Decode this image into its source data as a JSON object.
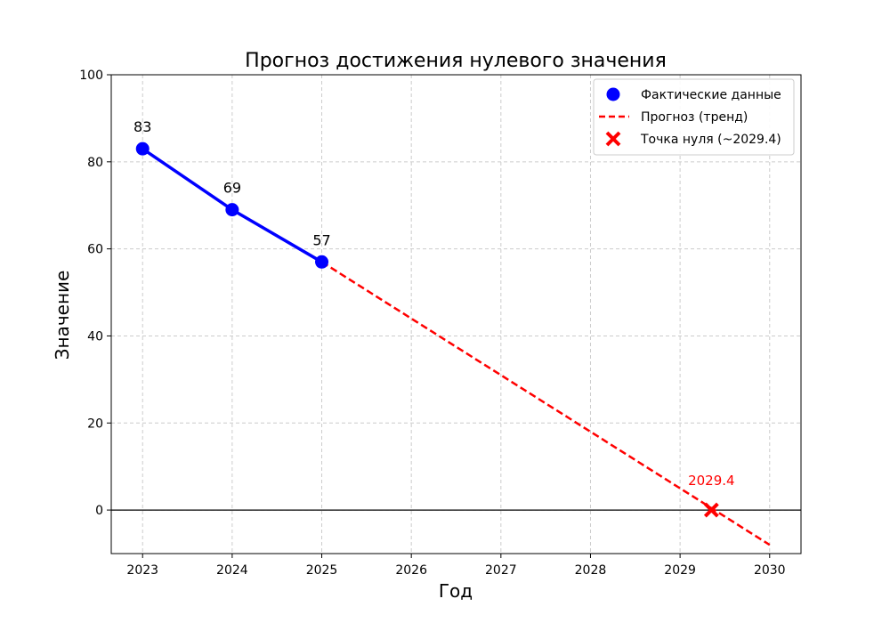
{
  "chart_data": {
    "type": "line",
    "title": "Прогноз достижения нулевого значения",
    "xlabel": "Год",
    "ylabel": "Значение",
    "xlim": [
      2022.65,
      2030.35
    ],
    "ylim": [
      -10,
      100
    ],
    "x_ticks": [
      2023,
      2024,
      2025,
      2026,
      2027,
      2028,
      2029,
      2030
    ],
    "y_ticks": [
      0,
      20,
      40,
      60,
      80,
      100
    ],
    "grid": true,
    "legend_position": "top-right",
    "series": [
      {
        "name": "Фактические данные",
        "kind": "line-with-markers",
        "color": "#0000ff",
        "x": [
          2023,
          2024,
          2025
        ],
        "y": [
          83,
          69,
          57
        ],
        "labels": [
          "83",
          "69",
          "57"
        ]
      },
      {
        "name": "Прогноз (тренд)",
        "kind": "dashed-line",
        "color": "#ff0000",
        "x": [
          2025,
          2030
        ],
        "y": [
          57,
          -8
        ]
      },
      {
        "name": "Точка нуля (~2029.4)",
        "kind": "x-marker",
        "color": "#ff0000",
        "x": [
          2029.35
        ],
        "y": [
          0
        ],
        "labels": [
          "2029.4"
        ]
      }
    ],
    "reference_line": {
      "y": 0,
      "color": "#000000"
    }
  }
}
